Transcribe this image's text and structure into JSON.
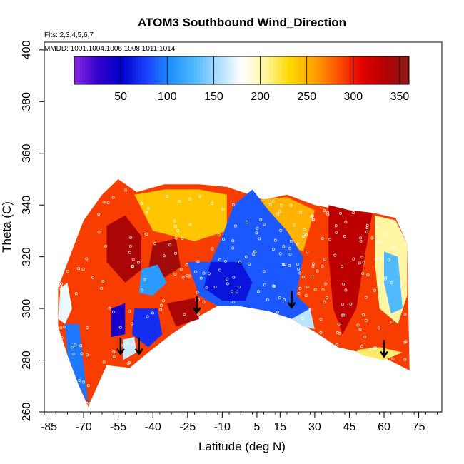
{
  "chart_data": {
    "type": "heatmap",
    "title": "ATOM3 Southbound Wind_Direction",
    "subtitle_flights": "Flts: 2,3,4,5,6,7",
    "subtitle_dates": "MMDD: 1001,1004,1006,1008,1011,1014",
    "xlabel": "Latitude (deg N)",
    "ylabel": "Theta (C)",
    "xlim": [
      -87,
      85
    ],
    "ylim": [
      260,
      403
    ],
    "x_ticks": [
      -85,
      -70,
      -55,
      -40,
      -25,
      -10,
      5,
      15,
      30,
      45,
      60,
      75
    ],
    "x_tick_labels": [
      "-85",
      "-70",
      "-55",
      "-40",
      "-25",
      "-10",
      "5",
      "15",
      "30",
      "45",
      "60",
      "75"
    ],
    "y_ticks": [
      260,
      280,
      300,
      320,
      340,
      360,
      380,
      400
    ],
    "y_tick_labels": [
      "260",
      "280",
      "300",
      "320",
      "340",
      "360",
      "380",
      "400"
    ],
    "colorbar": {
      "range": [
        0,
        360
      ],
      "ticks": [
        50,
        100,
        150,
        200,
        250,
        300,
        350
      ],
      "tick_labels": [
        "50",
        "100",
        "150",
        "200",
        "250",
        "300",
        "350"
      ],
      "colors": [
        "#8a2be2",
        "#3300cc",
        "#0000cc",
        "#1a3fff",
        "#1e90ff",
        "#4db8ff",
        "#a8dcff",
        "#ffffff",
        "#fff5a0",
        "#ffd700",
        "#ffa500",
        "#ff5500",
        "#e60000",
        "#b40000",
        "#8b1a1a"
      ]
    },
    "boundary_top": [
      [
        -81,
        308
      ],
      [
        -76,
        320
      ],
      [
        -70,
        334
      ],
      [
        -62,
        344
      ],
      [
        -55,
        350
      ],
      [
        -47,
        345
      ],
      [
        -35,
        348
      ],
      [
        -20,
        348
      ],
      [
        -8,
        347
      ],
      [
        2,
        344
      ],
      [
        8,
        342
      ],
      [
        18,
        344
      ],
      [
        30,
        340
      ],
      [
        42,
        338
      ],
      [
        55,
        337
      ],
      [
        65,
        335
      ],
      [
        70,
        325
      ]
    ],
    "boundary_bottom": [
      [
        -81,
        293
      ],
      [
        -77,
        282
      ],
      [
        -72,
        270
      ],
      [
        -68,
        262
      ],
      [
        -60,
        278
      ],
      [
        -50,
        277
      ],
      [
        -42,
        283
      ],
      [
        -32,
        290
      ],
      [
        -22,
        296
      ],
      [
        -12,
        301
      ],
      [
        -3,
        301
      ],
      [
        10,
        299
      ],
      [
        20,
        296
      ],
      [
        30,
        291
      ],
      [
        40,
        285
      ],
      [
        50,
        283
      ],
      [
        60,
        281
      ],
      [
        70,
        276
      ],
      [
        71,
        276
      ]
    ],
    "regions": [
      {
        "value": 290,
        "points": [
          [
            -81,
            293
          ],
          [
            -81,
            308
          ],
          [
            -76,
            320
          ],
          [
            -70,
            334
          ],
          [
            -62,
            344
          ],
          [
            -55,
            350
          ],
          [
            -47,
            345
          ],
          [
            -35,
            348
          ],
          [
            -20,
            348
          ],
          [
            -8,
            347
          ],
          [
            2,
            344
          ],
          [
            8,
            342
          ],
          [
            18,
            344
          ],
          [
            30,
            340
          ],
          [
            42,
            338
          ],
          [
            55,
            337
          ],
          [
            65,
            335
          ],
          [
            70,
            325
          ],
          [
            71,
            276
          ],
          [
            60,
            281
          ],
          [
            50,
            283
          ],
          [
            40,
            285
          ],
          [
            30,
            291
          ],
          [
            20,
            296
          ],
          [
            10,
            299
          ],
          [
            -3,
            301
          ],
          [
            -12,
            301
          ],
          [
            -22,
            296
          ],
          [
            -32,
            290
          ],
          [
            -42,
            283
          ],
          [
            -50,
            277
          ],
          [
            -60,
            278
          ],
          [
            -68,
            262
          ],
          [
            -72,
            270
          ],
          [
            -77,
            282
          ]
        ]
      },
      {
        "value": 240,
        "points": [
          [
            -48,
            344
          ],
          [
            -35,
            346
          ],
          [
            -20,
            346
          ],
          [
            -8,
            344
          ],
          [
            -8,
            330
          ],
          [
            -22,
            326
          ],
          [
            -40,
            330
          ]
        ]
      },
      {
        "value": 250,
        "points": [
          [
            5,
            342
          ],
          [
            18,
            343
          ],
          [
            30,
            338
          ],
          [
            25,
            322
          ],
          [
            15,
            326
          ]
        ]
      },
      {
        "value": 85,
        "points": [
          [
            -5,
            340
          ],
          [
            3,
            346
          ],
          [
            10,
            338
          ],
          [
            18,
            330
          ],
          [
            25,
            320
          ],
          [
            22,
            305
          ],
          [
            28,
            300
          ],
          [
            20,
            296
          ],
          [
            10,
            299
          ],
          [
            -3,
            301
          ],
          [
            -12,
            301
          ],
          [
            -20,
            305
          ],
          [
            -25,
            318
          ],
          [
            -15,
            318
          ],
          [
            -10,
            328
          ]
        ]
      },
      {
        "value": 60,
        "points": [
          [
            -15,
            318
          ],
          [
            -2,
            318
          ],
          [
            3,
            310
          ],
          [
            0,
            303
          ],
          [
            -10,
            303
          ],
          [
            -18,
            308
          ]
        ]
      },
      {
        "value": 160,
        "points": [
          [
            20,
            296
          ],
          [
            28,
            300
          ],
          [
            30,
            292
          ],
          [
            25,
            293
          ]
        ]
      },
      {
        "value": 330,
        "points": [
          [
            36,
            340
          ],
          [
            45,
            338
          ],
          [
            55,
            337
          ],
          [
            52,
            322
          ],
          [
            48,
            300
          ],
          [
            42,
            290
          ],
          [
            38,
            300
          ],
          [
            36,
            320
          ]
        ]
      },
      {
        "value": 205,
        "points": [
          [
            56,
            336
          ],
          [
            65,
            334
          ],
          [
            70,
            325
          ],
          [
            70,
            305
          ],
          [
            66,
            294
          ],
          [
            58,
            300
          ],
          [
            56,
            318
          ]
        ]
      },
      {
        "value": 130,
        "points": [
          [
            60,
            322
          ],
          [
            66,
            320
          ],
          [
            68,
            300
          ],
          [
            63,
            298
          ],
          [
            60,
            310
          ]
        ]
      },
      {
        "value": 215,
        "points": [
          [
            48,
            284
          ],
          [
            58,
            285
          ],
          [
            68,
            283
          ],
          [
            60,
            280
          ],
          [
            50,
            282
          ]
        ]
      },
      {
        "value": 340,
        "points": [
          [
            -60,
            332
          ],
          [
            -52,
            336
          ],
          [
            -45,
            328
          ],
          [
            -45,
            315
          ],
          [
            -52,
            310
          ],
          [
            -60,
            318
          ]
        ]
      },
      {
        "value": 345,
        "points": [
          [
            -40,
            325
          ],
          [
            -30,
            327
          ],
          [
            -28,
            316
          ],
          [
            -35,
            312
          ],
          [
            -42,
            315
          ]
        ]
      },
      {
        "value": 110,
        "points": [
          [
            -45,
            315
          ],
          [
            -38,
            317
          ],
          [
            -34,
            310
          ],
          [
            -40,
            305
          ],
          [
            -46,
            306
          ]
        ]
      },
      {
        "value": 70,
        "points": [
          [
            -48,
            300
          ],
          [
            -38,
            300
          ],
          [
            -36,
            290
          ],
          [
            -42,
            285
          ],
          [
            -49,
            290
          ]
        ]
      },
      {
        "value": 40,
        "points": [
          [
            -58,
            300
          ],
          [
            -52,
            302
          ],
          [
            -52,
            290
          ],
          [
            -58,
            289
          ]
        ]
      },
      {
        "value": 340,
        "points": [
          [
            -34,
            302
          ],
          [
            -22,
            304
          ],
          [
            -20,
            296
          ],
          [
            -30,
            293
          ]
        ]
      },
      {
        "value": 165,
        "points": [
          [
            -53,
            288
          ],
          [
            -48,
            289
          ],
          [
            -47,
            283
          ],
          [
            -53,
            280
          ]
        ]
      },
      {
        "value": 95,
        "points": [
          [
            -78,
            294
          ],
          [
            -72,
            294
          ],
          [
            -70,
            278
          ],
          [
            -68,
            263
          ],
          [
            -72,
            270
          ],
          [
            -77,
            282
          ]
        ]
      },
      {
        "value": 175,
        "points": [
          [
            -80,
            308
          ],
          [
            -77,
            310
          ],
          [
            -75,
            300
          ],
          [
            -78,
            294
          ],
          [
            -81,
            296
          ]
        ]
      }
    ],
    "arrows": [
      [
        -54,
        286
      ],
      [
        -46,
        286
      ],
      [
        -21,
        302
      ],
      [
        20,
        304
      ],
      [
        60,
        285
      ]
    ]
  }
}
